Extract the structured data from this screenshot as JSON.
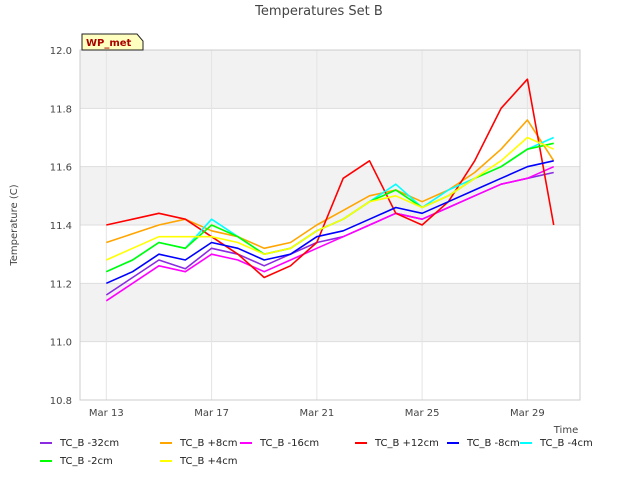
{
  "chart_data": {
    "type": "line",
    "title": "Temperatures Set B",
    "xlabel": "Time",
    "ylabel": "Temperature (C)",
    "badge": "WP_met",
    "xlim": [
      "Mar 12",
      "Mar 31"
    ],
    "ylim": [
      10.8,
      12.0
    ],
    "x_ticks": [
      "Mar 13",
      "Mar 17",
      "Mar 21",
      "Mar 25",
      "Mar 29"
    ],
    "y_ticks": [
      "10.8",
      "11.0",
      "11.2",
      "11.4",
      "11.6",
      "11.8",
      "12.0"
    ],
    "x": [
      "Mar 13",
      "Mar 14",
      "Mar 15",
      "Mar 16",
      "Mar 17",
      "Mar 18",
      "Mar 19",
      "Mar 20",
      "Mar 21",
      "Mar 22",
      "Mar 23",
      "Mar 24",
      "Mar 25",
      "Mar 26",
      "Mar 27",
      "Mar 28",
      "Mar 29",
      "Mar 30"
    ],
    "grid": true,
    "legend_position": "bottom",
    "series": [
      {
        "name": "TC_B -32cm",
        "color": "#8a2be2",
        "values": [
          11.16,
          11.22,
          11.28,
          11.25,
          11.32,
          11.3,
          11.26,
          11.3,
          11.34,
          11.36,
          11.4,
          11.44,
          11.42,
          11.46,
          11.5,
          11.54,
          11.56,
          11.58
        ]
      },
      {
        "name": "TC_B +8cm",
        "color": "#ffa500",
        "values": [
          11.34,
          11.37,
          11.4,
          11.42,
          11.38,
          11.36,
          11.32,
          11.34,
          11.4,
          11.45,
          11.5,
          11.52,
          11.48,
          11.52,
          11.58,
          11.66,
          11.76,
          11.62
        ]
      },
      {
        "name": "TC_B -16cm",
        "color": "#ff00ff",
        "values": [
          11.14,
          11.2,
          11.26,
          11.24,
          11.3,
          11.28,
          11.24,
          11.28,
          11.32,
          11.36,
          11.4,
          11.44,
          11.42,
          11.46,
          11.5,
          11.54,
          11.56,
          11.6
        ]
      },
      {
        "name": "TC_B +12cm",
        "color": "#ff0000",
        "values": [
          11.4,
          11.42,
          11.44,
          11.42,
          11.36,
          11.3,
          11.22,
          11.26,
          11.34,
          11.56,
          11.62,
          11.44,
          11.4,
          11.48,
          11.62,
          11.8,
          11.9,
          11.4
        ]
      },
      {
        "name": "TC_B -8cm",
        "color": "#0000ff",
        "values": [
          11.2,
          11.24,
          11.3,
          11.28,
          11.34,
          11.32,
          11.28,
          11.3,
          11.36,
          11.38,
          11.42,
          11.46,
          11.44,
          11.48,
          11.52,
          11.56,
          11.6,
          11.62
        ]
      },
      {
        "name": "TC_B -4cm",
        "color": "#00ffff",
        "values": [
          11.24,
          11.28,
          11.34,
          11.32,
          11.42,
          11.36,
          11.3,
          11.32,
          11.38,
          11.42,
          11.48,
          11.54,
          11.46,
          11.52,
          11.56,
          11.6,
          11.66,
          11.7
        ]
      },
      {
        "name": "TC_B -2cm",
        "color": "#00ff00",
        "values": [
          11.24,
          11.28,
          11.34,
          11.32,
          11.4,
          11.36,
          11.3,
          11.32,
          11.38,
          11.42,
          11.48,
          11.52,
          11.46,
          11.5,
          11.56,
          11.6,
          11.66,
          11.68
        ]
      },
      {
        "name": "TC_B +4cm",
        "color": "#ffff00",
        "values": [
          11.28,
          11.32,
          11.36,
          11.36,
          11.36,
          11.34,
          11.3,
          11.32,
          11.38,
          11.42,
          11.48,
          11.5,
          11.46,
          11.5,
          11.56,
          11.62,
          11.7,
          11.66
        ]
      }
    ]
  }
}
